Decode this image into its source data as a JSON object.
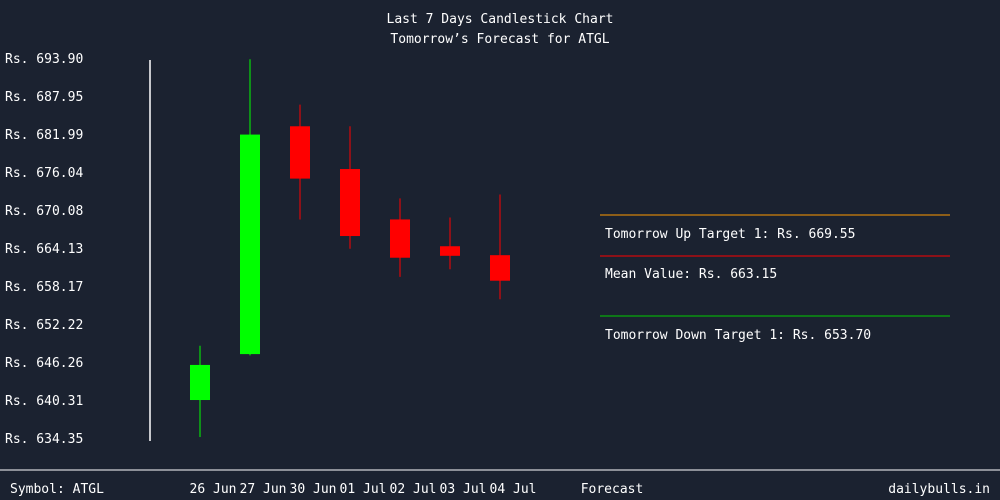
{
  "chart_data": {
    "type": "candlestick",
    "title": "Last 7 Days Candlestick Chart",
    "subtitle": "Tomorrow’s Forecast for ATGL",
    "currency_prefix": "Rs.",
    "y_ticks": [
      "693.90",
      "687.95",
      "681.99",
      "676.04",
      "670.08",
      "664.13",
      "658.17",
      "652.22",
      "646.26",
      "640.31",
      "634.35"
    ],
    "ylim": [
      634.35,
      693.9
    ],
    "categories": [
      "26 Jun",
      "27 Jun",
      "30 Jun",
      "01 Jul",
      "02 Jul",
      "03 Jul",
      "04 Jul"
    ],
    "candles": [
      {
        "date": "26 Jun",
        "open": 640.3,
        "close": 645.8,
        "high": 648.8,
        "low": 634.5
      },
      {
        "date": "27 Jun",
        "open": 647.5,
        "close": 681.9,
        "high": 693.7,
        "low": 647.3
      },
      {
        "date": "30 Jun",
        "open": 683.2,
        "close": 675.0,
        "high": 686.6,
        "low": 668.6
      },
      {
        "date": "01 Jul",
        "open": 676.5,
        "close": 666.0,
        "high": 683.2,
        "low": 664.0
      },
      {
        "date": "02 Jul",
        "open": 668.6,
        "close": 662.6,
        "high": 671.9,
        "low": 659.6
      },
      {
        "date": "03 Jul",
        "open": 664.4,
        "close": 662.9,
        "high": 668.9,
        "low": 660.8
      },
      {
        "date": "04 Jul",
        "open": 663.0,
        "close": 659.0,
        "high": 672.5,
        "low": 656.1
      }
    ],
    "bull_color": "#00ff00",
    "bear_color": "#ff0000",
    "forecast": {
      "label": "Forecast",
      "up_target": {
        "text": "Tomorrow Up Target 1: Rs. 669.55",
        "value": 669.55,
        "color": "#ff9900"
      },
      "mean": {
        "text": "Mean Value: Rs. 663.15",
        "value": 663.15,
        "color": "#ff0000"
      },
      "down_target": {
        "text": "Tomorrow Down Target 1: Rs. 653.70",
        "value": 653.7,
        "color": "#00cc00"
      }
    }
  },
  "footer": {
    "symbol": "Symbol: ATGL",
    "site": "dailybulls.in"
  }
}
